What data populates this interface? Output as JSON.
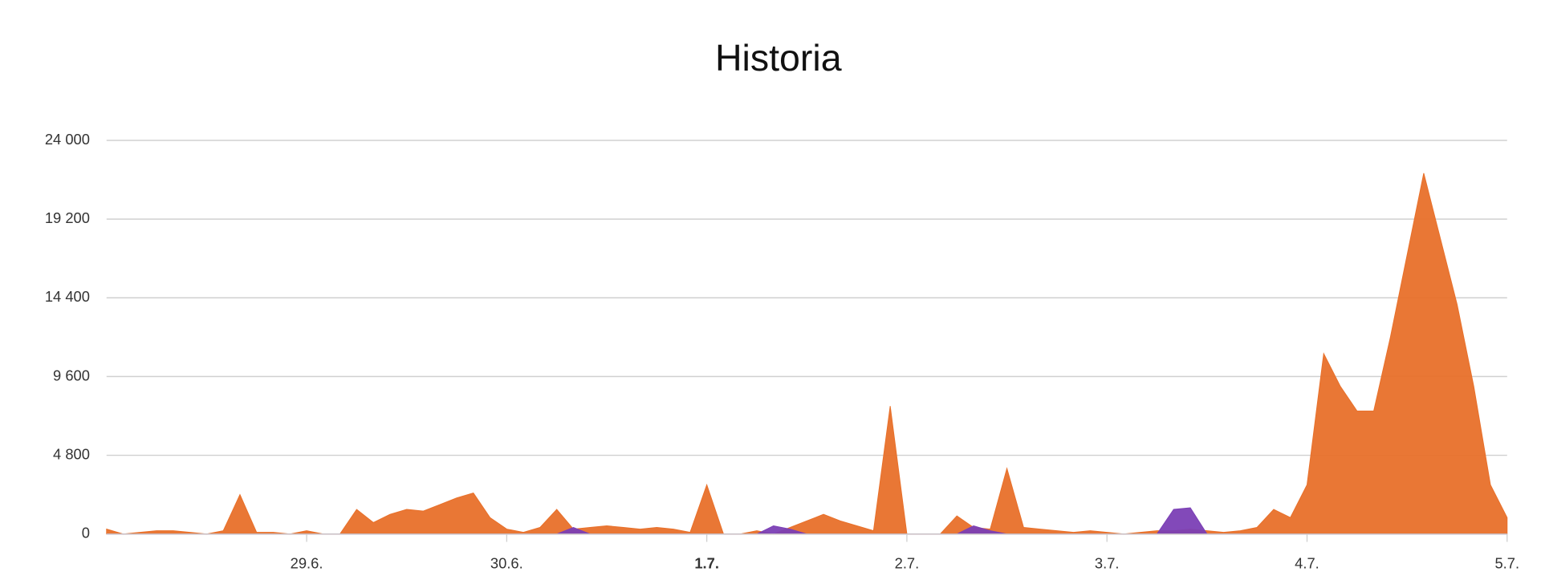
{
  "chart_data": {
    "type": "area",
    "title": "Historia",
    "x": [
      0,
      2,
      4,
      6,
      8,
      10,
      12,
      14,
      16,
      18,
      20,
      22,
      24,
      26,
      28,
      30,
      32,
      34,
      36,
      38,
      40,
      42,
      44,
      46,
      48,
      50,
      52,
      54,
      56,
      58,
      60,
      62,
      64,
      66,
      68,
      70,
      72,
      74,
      76,
      78,
      80,
      82,
      84,
      86,
      88,
      90,
      92,
      94,
      96,
      98,
      100,
      102,
      104,
      106,
      108,
      110,
      112,
      114,
      116,
      118,
      120,
      122,
      124,
      126,
      128,
      130,
      132,
      134,
      136,
      138,
      140,
      142,
      144,
      146,
      148,
      150,
      152,
      154,
      156,
      158,
      160,
      162,
      164,
      166,
      168
    ],
    "series": [
      {
        "color": "#e8702a",
        "values": [
          300,
          0,
          100,
          200,
          200,
          100,
          0,
          200,
          2400,
          100,
          100,
          0,
          200,
          0,
          0,
          1500,
          700,
          1200,
          1500,
          1400,
          1800,
          2200,
          2500,
          1000,
          300,
          100,
          400,
          1500,
          300,
          400,
          500,
          400,
          300,
          400,
          300,
          100,
          3000,
          0,
          0,
          200,
          0,
          400,
          800,
          1200,
          800,
          500,
          200,
          7800,
          0,
          0,
          0,
          1100,
          400,
          300,
          4000,
          400,
          300,
          200,
          100,
          200,
          100,
          0,
          100,
          200,
          200,
          300,
          200,
          100,
          200,
          400,
          1500,
          1000,
          3000,
          11000,
          9000,
          7500,
          7500,
          12000,
          17000,
          22000,
          18000,
          14000,
          9000,
          3000,
          1000
        ]
      },
      {
        "color": "#7b3fb5",
        "values": [
          0,
          0,
          0,
          0,
          0,
          0,
          0,
          0,
          0,
          0,
          0,
          0,
          0,
          0,
          0,
          0,
          0,
          0,
          0,
          0,
          0,
          0,
          0,
          0,
          0,
          0,
          0,
          0,
          400,
          0,
          0,
          0,
          0,
          0,
          0,
          0,
          0,
          0,
          0,
          0,
          500,
          300,
          0,
          0,
          0,
          0,
          0,
          0,
          0,
          0,
          0,
          0,
          500,
          200,
          0,
          0,
          0,
          0,
          0,
          0,
          0,
          0,
          0,
          0,
          1500,
          1600,
          0,
          0,
          0,
          0,
          0,
          0,
          0,
          0,
          0,
          0,
          0,
          0,
          0,
          0,
          0,
          0,
          0,
          0,
          0
        ]
      }
    ],
    "xlim": [
      0,
      168
    ],
    "xticks": [
      {
        "value": 24,
        "label": "29.6."
      },
      {
        "value": 48,
        "label": "30.6."
      },
      {
        "value": 72,
        "label": "1.7."
      },
      {
        "value": 96,
        "label": "2.7."
      },
      {
        "value": 120,
        "label": "3.7."
      },
      {
        "value": 144,
        "label": "4.7."
      },
      {
        "value": 168,
        "label": "5.7."
      }
    ],
    "ylim": [
      0,
      24000
    ],
    "yticks": [
      0,
      {
        "value": 4800,
        "label": "4 800"
      },
      {
        "value": 9600,
        "label": "9 600"
      },
      {
        "value": 14400,
        "label": "14 400"
      },
      {
        "value": 19200,
        "label": "19 200"
      },
      {
        "value": 24000,
        "label": "24 000"
      }
    ],
    "grid": true
  }
}
